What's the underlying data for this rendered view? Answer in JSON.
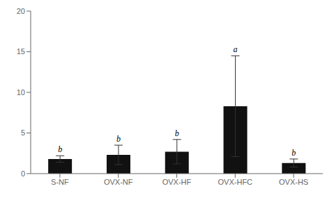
{
  "chart_data": {
    "type": "bar",
    "categories": [
      "S-NF",
      "OVX-NF",
      "OVX-HF",
      "OVX-HFC",
      "OVX-HS"
    ],
    "values": [
      1.8,
      2.3,
      2.7,
      8.3,
      1.3
    ],
    "errors": [
      0.4,
      1.2,
      1.5,
      6.2,
      0.5
    ],
    "letters": [
      "b",
      "b",
      "b",
      "a",
      "b"
    ],
    "color": "#111111",
    "ylim": [
      0,
      20
    ],
    "yticks": [
      0,
      5,
      10,
      15,
      20
    ],
    "grid": false
  }
}
